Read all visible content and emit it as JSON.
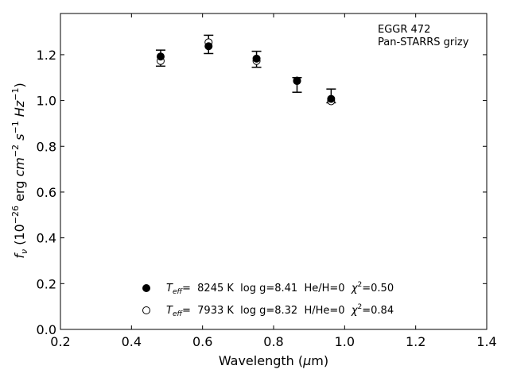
{
  "chart_data": {
    "type": "scatter",
    "xlabel": "Wavelength (μm)",
    "ylabel": "f_ν (10^-26 erg cm^-2 s^-1 Hz^-1)",
    "xlim": [
      0.2,
      1.4
    ],
    "ylim": [
      0.0,
      1.38
    ],
    "x_ticks": [
      0.2,
      0.4,
      0.6,
      0.8,
      1.0,
      1.2,
      1.4
    ],
    "y_ticks": [
      0.0,
      0.2,
      0.4,
      0.6,
      0.8,
      1.0,
      1.2
    ],
    "x_tick_labels": [
      "0.2",
      "0.4",
      "0.6",
      "0.8",
      "1.0",
      "1.2",
      "1.4"
    ],
    "y_tick_labels": [
      "0.0",
      "0.2",
      "0.4",
      "0.6",
      "0.8",
      "1.0",
      "1.2"
    ],
    "grid": false,
    "annotation": [
      "EGGR 472",
      "Pan-STARRS grizy"
    ],
    "observed": {
      "x": [
        0.482,
        0.617,
        0.752,
        0.866,
        0.962
      ],
      "y": [
        1.185,
        1.245,
        1.18,
        1.068,
        1.02
      ],
      "yerr": [
        0.035,
        0.04,
        0.035,
        0.032,
        0.03
      ]
    },
    "series": [
      {
        "name": "T_eff= 8245 K log g=8.41 He/H=0 χ²=0.50",
        "marker": "filled-circle",
        "x": [
          0.482,
          0.617,
          0.752,
          0.866,
          0.962
        ],
        "y": [
          1.192,
          1.237,
          1.183,
          1.087,
          1.007
        ]
      },
      {
        "name": "T_eff= 7933 K log g=8.32 H/He=0 χ²=0.84",
        "marker": "open-circle",
        "x": [
          0.482,
          0.617,
          0.752,
          0.866,
          0.962
        ],
        "y": [
          1.173,
          1.254,
          1.173,
          1.085,
          0.997
        ]
      }
    ],
    "legend": {
      "placement": "bottom-center",
      "entries": [
        {
          "teff_label": "T",
          "teff_sub": "eff",
          "rest": "=  8245 K  log g=8.41  He/H=0  ",
          "chi": "χ",
          "chi_sup": "2",
          "chi_rest": "=0.50"
        },
        {
          "teff_label": "T",
          "teff_sub": "eff",
          "rest": "=  7933 K  log g=8.32  H/He=0  ",
          "chi": "χ",
          "chi_sup": "2",
          "chi_rest": "=0.84"
        }
      ]
    }
  }
}
